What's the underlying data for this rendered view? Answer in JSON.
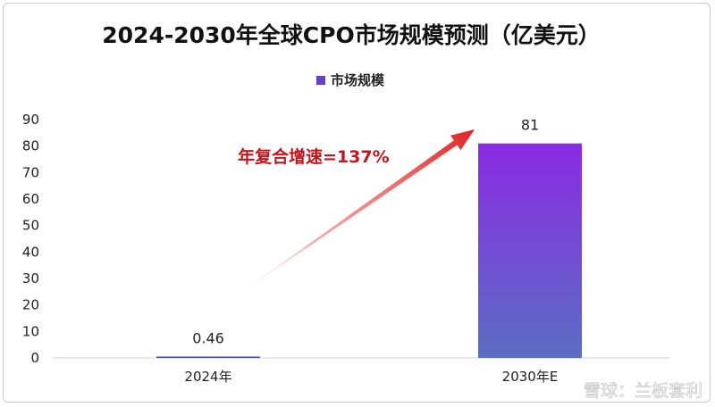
{
  "chart_data": {
    "type": "bar",
    "title": "2024-2030年全球CPO市场规模预测（亿美元）",
    "categories": [
      "2024年",
      "2030年E"
    ],
    "series": [
      {
        "name": "市场规模",
        "values": [
          0.46,
          81
        ]
      }
    ],
    "data_labels": [
      "0.46",
      "81"
    ],
    "ylim": [
      0,
      90
    ],
    "yticks": [
      0,
      10,
      20,
      30,
      40,
      50,
      60,
      70,
      80,
      90
    ],
    "legend_position": "top-center",
    "grid": false,
    "annotation": "年复合增速=137%",
    "colors": {
      "bar_top": "#8a2be2",
      "bar_bottom": "#5b6ec2",
      "first_bar": "#4a4aa8",
      "arrow": "#e02424",
      "legend_swatch": "#6a3fc8"
    }
  },
  "watermark": "雪球：兰板套利"
}
